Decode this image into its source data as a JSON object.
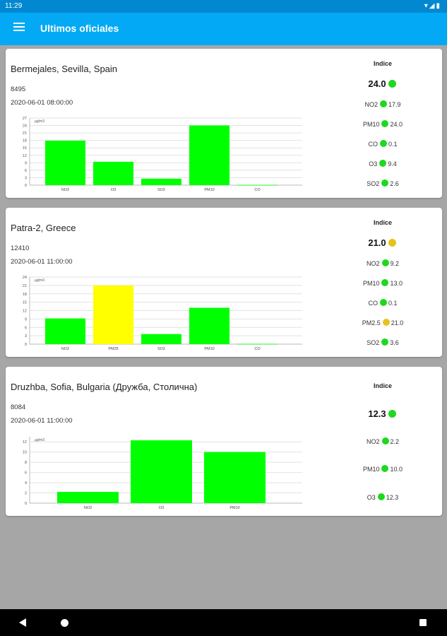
{
  "status": {
    "time": "11:29",
    "icons": "▾◢▮"
  },
  "appbar": {
    "title": "Ultimos oficiales"
  },
  "colors": {
    "green": "#00ff00",
    "yellow": "#ffff00",
    "dot_green": "#1ed81e",
    "dot_yellow": "#e5c31a"
  },
  "cards": [
    {
      "location": "Bermejales, Sevilla, Spain",
      "station_id": "8495",
      "datetime": "2020-06-01 08:00:00",
      "indice_label": "Indice",
      "indice_value": "24.0",
      "indice_color": "green",
      "pollutants": [
        {
          "label": "NO2",
          "value": "17.9",
          "color": "green"
        },
        {
          "label": "PM10",
          "value": "24.0",
          "color": "green"
        },
        {
          "label": "CO",
          "value": "0.1",
          "color": "green"
        },
        {
          "label": "O3",
          "value": "9.4",
          "color": "green"
        },
        {
          "label": "SO2",
          "value": "2.6",
          "color": "green"
        }
      ]
    },
    {
      "location": "Patra-2, Greece",
      "station_id": "12410",
      "datetime": "2020-06-01 11:00:00",
      "indice_label": "Indice",
      "indice_value": "21.0",
      "indice_color": "yellow",
      "pollutants": [
        {
          "label": "NO2",
          "value": "9.2",
          "color": "green"
        },
        {
          "label": "PM10",
          "value": "13.0",
          "color": "green"
        },
        {
          "label": "CO",
          "value": "0.1",
          "color": "green"
        },
        {
          "label": "PM2.5",
          "value": "21.0",
          "color": "yellow"
        },
        {
          "label": "SO2",
          "value": "3.6",
          "color": "green"
        }
      ]
    },
    {
      "location": "Druzhba, Sofia, Bulgaria (Дружба, Столична)",
      "station_id": "8084",
      "datetime": "2020-06-01 11:00:00",
      "indice_label": "Indice",
      "indice_value": "12.3",
      "indice_color": "green",
      "pollutants": [
        {
          "label": "NO2",
          "value": "2.2",
          "color": "green"
        },
        {
          "label": "PM10",
          "value": "10.0",
          "color": "green"
        },
        {
          "label": "O3",
          "value": "12.3",
          "color": "green"
        }
      ]
    }
  ],
  "chart_data": [
    {
      "type": "bar",
      "unit_label": "µg/m3",
      "categories": [
        "NO2",
        "O3",
        "SO2",
        "PM10",
        "CO"
      ],
      "values": [
        17.9,
        9.4,
        2.6,
        24.0,
        0.1
      ],
      "bar_colors": [
        "green",
        "green",
        "green",
        "green",
        "green"
      ],
      "ylim": [
        0,
        27
      ],
      "yticks": [
        0,
        3,
        6,
        9,
        12,
        15,
        18,
        21,
        24,
        27
      ],
      "grid": true
    },
    {
      "type": "bar",
      "unit_label": "µg/m3",
      "categories": [
        "NO2",
        "PM25",
        "SO2",
        "PM10",
        "CO"
      ],
      "values": [
        9.2,
        21.0,
        3.6,
        13.0,
        0.1
      ],
      "bar_colors": [
        "green",
        "yellow",
        "green",
        "green",
        "green"
      ],
      "ylim": [
        0,
        24
      ],
      "yticks": [
        0,
        3,
        6,
        9,
        12,
        15,
        18,
        21,
        24
      ],
      "grid": true
    },
    {
      "type": "bar",
      "unit_label": "µg/m3",
      "categories": [
        "NO2",
        "O3",
        "PM10"
      ],
      "values": [
        2.2,
        12.3,
        10.0
      ],
      "bar_colors": [
        "green",
        "green",
        "green"
      ],
      "ylim": [
        0,
        13
      ],
      "yticks": [
        0,
        2,
        4,
        6,
        8,
        10,
        12
      ],
      "grid": true
    }
  ]
}
